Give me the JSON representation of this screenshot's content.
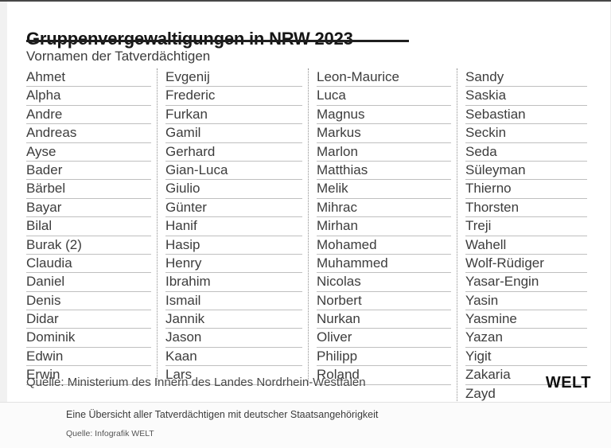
{
  "header": {
    "title": "Gruppenvergewaltigungen in NRW 2023",
    "subtitle": "Vornamen der Tatverdächtigen"
  },
  "chart_data": {
    "type": "table",
    "title": "Gruppenvergewaltigungen in NRW 2023",
    "subtitle": "Vornamen der Tatverdächtigen",
    "columns": [
      [
        "Ahmet",
        "Alpha",
        "Andre",
        "Andreas",
        "Ayse",
        "Bader",
        "Bärbel",
        "Bayar",
        "Bilal",
        "Burak (2)",
        "Claudia",
        "Daniel",
        "Denis",
        "Didar",
        "Dominik",
        "Edwin",
        "Erwin"
      ],
      [
        "Evgenij",
        "Frederic",
        "Furkan",
        "Gamil",
        "Gerhard",
        "Gian-Luca",
        "Giulio",
        "Günter",
        "Hanif",
        "Hasip",
        "Henry",
        "Ibrahim",
        "Ismail",
        "Jannik",
        "Jason",
        "Kaan",
        "Lars"
      ],
      [
        "Leon-Maurice",
        "Luca",
        "Magnus",
        "Markus",
        "Marlon",
        "Matthias",
        "Melik",
        "Mihrac",
        "Mirhan",
        "Mohamed",
        "Muhammed",
        "Nicolas",
        "Norbert",
        "Nurkan",
        "Oliver",
        "Philipp",
        "Roland"
      ],
      [
        "Sandy",
        "Saskia",
        "Sebastian",
        "Seckin",
        "Seda",
        "Süleyman",
        "Thierno",
        "Thorsten",
        "Treji",
        "Wahell",
        "Wolf-Rüdiger",
        "Yasar-Engin",
        "Yasin",
        "Yasmine",
        "Yazan",
        "Yigit",
        "Zakaria",
        "Zayd"
      ]
    ],
    "source": "Quelle: Ministerium des Innern des Landes Nordrhein-Westfalen"
  },
  "footer": {
    "source": "Quelle: Ministerium des Innern des Landes Nordrhein-Westfalen",
    "brand": "WELT"
  },
  "caption": {
    "text": "Eine Übersicht aller Tatverdächtigen mit deutscher Staatsangehörigkeit",
    "source": "Quelle: Infografik WELT"
  },
  "colors": {
    "title_text": "#161616",
    "name_text": "#3d3d3d",
    "row_line": "#bfbfbf",
    "column_dots": "#8f8f8f",
    "top_rule": "#474747",
    "caption_background": "#fbfbfb"
  }
}
